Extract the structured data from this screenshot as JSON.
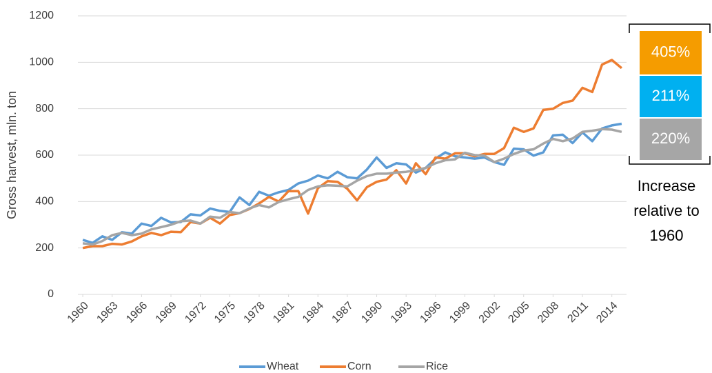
{
  "chart_data": {
    "type": "line",
    "y_label": "Gross harvest, mln. ton",
    "x": [
      1960,
      1961,
      1962,
      1963,
      1964,
      1965,
      1966,
      1967,
      1968,
      1969,
      1970,
      1971,
      1972,
      1973,
      1974,
      1975,
      1976,
      1977,
      1978,
      1979,
      1980,
      1981,
      1982,
      1983,
      1984,
      1985,
      1986,
      1987,
      1988,
      1989,
      1990,
      1991,
      1992,
      1993,
      1994,
      1995,
      1996,
      1997,
      1998,
      1999,
      2000,
      2001,
      2002,
      2003,
      2004,
      2005,
      2006,
      2007,
      2008,
      2009,
      2010,
      2011,
      2012,
      2013,
      2014,
      2015
    ],
    "xlim": [
      1959.5,
      2015.5
    ],
    "xticks": [
      1960,
      1963,
      1966,
      1969,
      1972,
      1975,
      1978,
      1981,
      1984,
      1987,
      1990,
      1993,
      1996,
      1999,
      2002,
      2005,
      2008,
      2011,
      2014
    ],
    "ylim": [
      0,
      1200
    ],
    "yticks": [
      0,
      200,
      400,
      600,
      800,
      1000,
      1200
    ],
    "grid": true,
    "legend": "bottom",
    "series": [
      {
        "name": "Wheat",
        "color": "#5b9bd5",
        "values": [
          235,
          222,
          250,
          235,
          268,
          262,
          305,
          295,
          330,
          310,
          312,
          345,
          340,
          370,
          360,
          355,
          418,
          385,
          442,
          425,
          440,
          450,
          478,
          490,
          512,
          500,
          528,
          505,
          500,
          538,
          590,
          545,
          565,
          560,
          525,
          545,
          585,
          612,
          595,
          590,
          585,
          590,
          570,
          558,
          628,
          625,
          598,
          612,
          685,
          688,
          652,
          698,
          660,
          715,
          728,
          735
        ]
      },
      {
        "name": "Corn",
        "color": "#ed7d31",
        "values": [
          200,
          208,
          208,
          218,
          215,
          228,
          250,
          265,
          255,
          270,
          268,
          312,
          305,
          330,
          305,
          342,
          350,
          368,
          392,
          420,
          400,
          445,
          445,
          348,
          458,
          488,
          485,
          455,
          405,
          462,
          485,
          495,
          535,
          478,
          565,
          518,
          590,
          585,
          608,
          608,
          595,
          605,
          605,
          630,
          718,
          700,
          715,
          795,
          800,
          825,
          835,
          890,
          872,
          990,
          1010,
          975
        ]
      },
      {
        "name": "Rice",
        "color": "#a5a5a5",
        "values": [
          220,
          215,
          230,
          255,
          265,
          255,
          262,
          280,
          290,
          300,
          315,
          318,
          305,
          335,
          330,
          355,
          350,
          370,
          385,
          375,
          398,
          410,
          420,
          450,
          465,
          470,
          468,
          465,
          490,
          510,
          520,
          520,
          525,
          528,
          535,
          545,
          565,
          578,
          582,
          610,
          600,
          598,
          570,
          585,
          605,
          620,
          625,
          650,
          670,
          660,
          672,
          700,
          705,
          712,
          710,
          700
        ]
      }
    ],
    "annotations": [
      {
        "label": "405%",
        "color": "#f59c00"
      },
      {
        "label": "211%",
        "color": "#00b0f0"
      },
      {
        "label": "220%",
        "color": "#a6a6a6"
      }
    ],
    "annotation_caption": [
      "Increase",
      "relative to",
      "1960"
    ]
  }
}
